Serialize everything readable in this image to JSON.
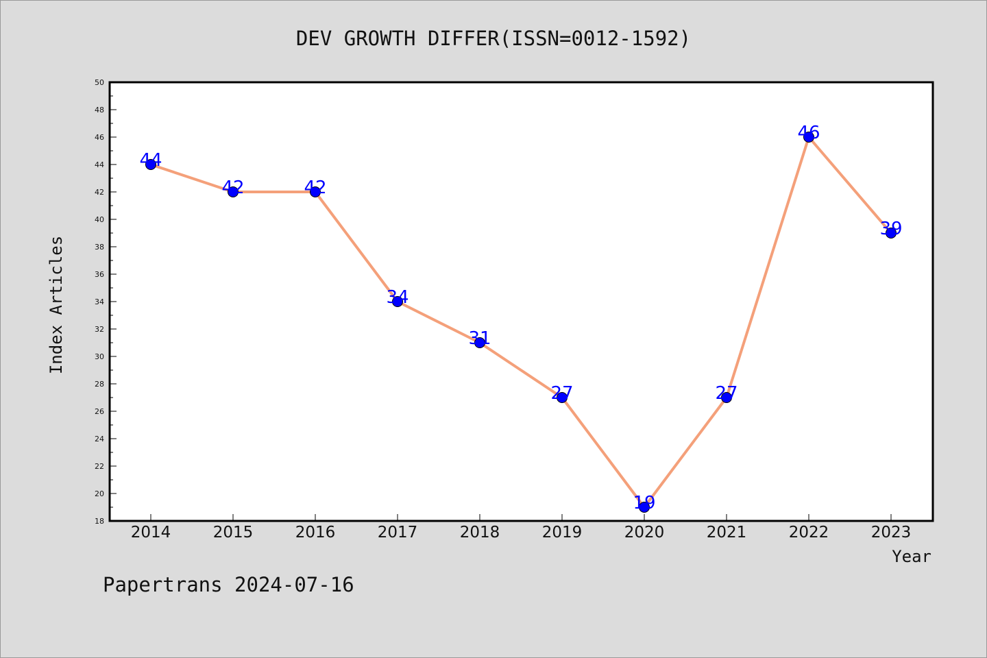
{
  "chart_data": {
    "type": "line",
    "title": "DEV GROWTH DIFFER(ISSN=0012-1592)",
    "xlabel": "Year",
    "ylabel": "Index Articles",
    "categories": [
      "2014",
      "2015",
      "2016",
      "2017",
      "2018",
      "2019",
      "2020",
      "2021",
      "2022",
      "2023"
    ],
    "series": [
      {
        "values": [
          44,
          42,
          42,
          34,
          31,
          27,
          19,
          27,
          46,
          39
        ]
      }
    ],
    "ylim": [
      18,
      50
    ],
    "yticks": [
      "18",
      "20",
      "22",
      "24",
      "26",
      "28",
      "30",
      "32",
      "34",
      "36",
      "38",
      "40",
      "42",
      "44",
      "46",
      "48",
      "50"
    ],
    "grid": false,
    "line_color": "#f4a07a",
    "marker_color": "#0000ff",
    "label_color": "#0000ff"
  },
  "footer": "Papertrans 2024-07-16"
}
